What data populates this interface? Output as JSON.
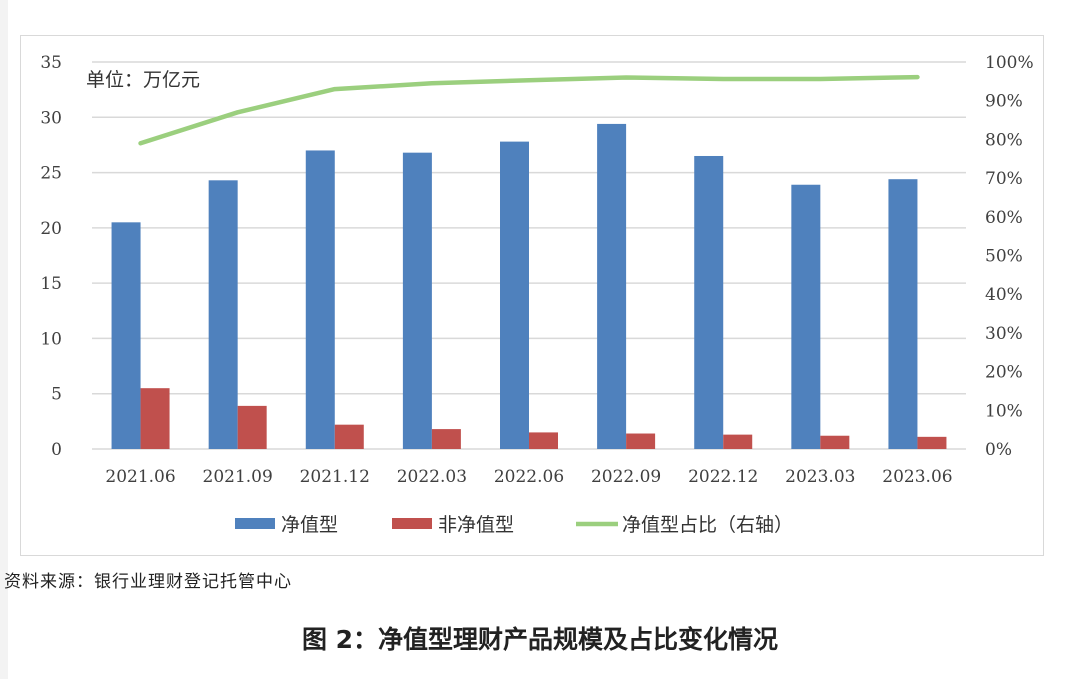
{
  "chart_data": {
    "type": "bar",
    "title": "图 2：净值型理财产品规模及占比变化情况",
    "unit_label": "单位：万亿元",
    "xlabel": "",
    "ylabel": "万亿元",
    "y2label": "净值型占比",
    "categories": [
      "2021.06",
      "2021.09",
      "2021.12",
      "2022.03",
      "2022.06",
      "2022.09",
      "2022.12",
      "2023.03",
      "2023.06"
    ],
    "series": [
      {
        "name": "净值型",
        "type": "bar",
        "axis": "left",
        "color": "#4f81bd",
        "values": [
          20.5,
          24.3,
          27.0,
          26.8,
          27.8,
          29.4,
          26.5,
          23.9,
          24.4
        ]
      },
      {
        "name": "非净值型",
        "type": "bar",
        "axis": "left",
        "color": "#c0504d",
        "values": [
          5.5,
          3.9,
          2.2,
          1.8,
          1.5,
          1.4,
          1.3,
          1.2,
          1.1
        ]
      },
      {
        "name": "净值型占比（右轴）",
        "type": "line",
        "axis": "right",
        "color": "#9bcf7e",
        "values": [
          79,
          87,
          93,
          94.5,
          95.3,
          96,
          95.6,
          95.6,
          96.1
        ]
      }
    ],
    "ylim": [
      0,
      35
    ],
    "yticks": [
      "35",
      "30",
      "25",
      "20",
      "15",
      "10",
      "5",
      "0"
    ],
    "y2lim": [
      0,
      100
    ],
    "y2ticks": [
      "100%",
      "90%",
      "80%",
      "70%",
      "60%",
      "50%",
      "40%",
      "30%",
      "20%",
      "10%",
      "0%"
    ],
    "grid": true,
    "legend_position": "bottom"
  },
  "legend": {
    "items": [
      {
        "label": "净值型",
        "color": "#4f81bd",
        "kind": "box"
      },
      {
        "label": "非净值型",
        "color": "#c0504d",
        "kind": "box"
      },
      {
        "label": "净值型占比（右轴）",
        "color": "#9bcf7e",
        "kind": "line"
      }
    ]
  },
  "source": "资料来源：银行业理财登记托管中心",
  "caption": "图 2：净值型理财产品规模及占比变化情况"
}
